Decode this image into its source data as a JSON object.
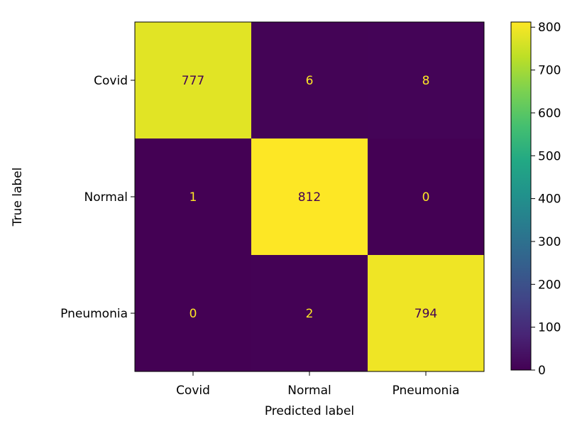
{
  "chart_data": {
    "type": "heatmap",
    "title": "",
    "xlabel": "Predicted label",
    "ylabel": "True label",
    "x_categories": [
      "Covid",
      "Normal",
      "Pneumonia"
    ],
    "y_categories": [
      "Covid",
      "Normal",
      "Pneumonia"
    ],
    "values": [
      [
        777,
        6,
        8
      ],
      [
        1,
        812,
        0
      ],
      [
        0,
        2,
        794
      ]
    ],
    "colormap": "viridis",
    "color_range": [
      0,
      812
    ],
    "colorbar_ticks": [
      0,
      100,
      200,
      300,
      400,
      500,
      600,
      700,
      800
    ],
    "grid": false,
    "colors": {
      "low": "#440154",
      "high": "#fde725",
      "text_on_low": "#fde725",
      "text_on_high": "#440154"
    }
  }
}
